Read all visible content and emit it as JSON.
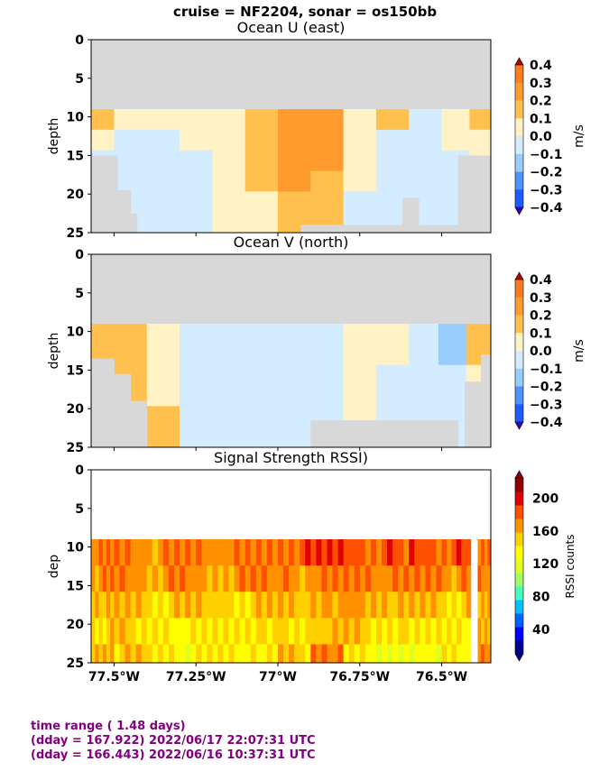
{
  "suptitle": "cruise = NF2204,  sonar = os150bb",
  "colors": {
    "land": "#d8d8d8",
    "footer": "#800080",
    "div_levels": [
      "#3300cc",
      "#1f5cff",
      "#4d94ff",
      "#99ccff",
      "#d4ecff",
      "#fff2c4",
      "#ffc04d",
      "#ff9a2e",
      "#ff7a1f",
      "#e03010",
      "#c00000"
    ],
    "rssi_levels": [
      "#00008f",
      "#0000ff",
      "#0060ff",
      "#00c0ff",
      "#40ffc0",
      "#a0ff60",
      "#e0ff20",
      "#ffff00",
      "#ffd000",
      "#ff9000",
      "#ff5000",
      "#e00000",
      "#900000"
    ]
  },
  "footer": {
    "line1": "time range ( 1.48 days)",
    "line2": "(dday = 167.922) 2022/06/17 22:07:31 UTC",
    "line3": "(dday = 166.443) 2022/06/16 10:37:31 UTC"
  },
  "chart_data": [
    {
      "type": "heatmap",
      "title": "Ocean U (east)",
      "ylabel": "depth",
      "colorbar_label": "m/s",
      "colorbar_ticks": [
        "0.4",
        "0.3",
        "0.2",
        "0.1",
        "0.0",
        "−0.1",
        "−0.2",
        "−0.3",
        "−0.4"
      ],
      "yticks": [
        "0",
        "5",
        "10",
        "15",
        "20",
        "25"
      ],
      "ylim": [
        25,
        0
      ],
      "xlim": [
        -77.57,
        -76.35
      ],
      "data_top_depth": 9,
      "land_steps": [
        [
          -77.57,
          15.0
        ],
        [
          -77.49,
          19.5
        ],
        [
          -77.45,
          22.5
        ],
        [
          -77.43,
          25.5
        ],
        [
          -76.96,
          25.5
        ],
        [
          -76.93,
          24.0
        ],
        [
          -76.62,
          20.5
        ],
        [
          -76.57,
          24.0
        ],
        [
          -76.45,
          15.0
        ],
        [
          -76.38,
          15.0
        ]
      ],
      "columns": [
        {
          "x": -77.55,
          "values": [
            0.12,
            0.05,
            -0.02,
            -0.05,
            -0.05,
            -0.05
          ]
        },
        {
          "x": -77.45,
          "values": [
            0.08,
            -0.02,
            -0.05,
            -0.05,
            -0.05,
            -0.05
          ]
        },
        {
          "x": -77.35,
          "values": [
            0.03,
            -0.02,
            -0.05,
            -0.05,
            -0.05,
            -0.05
          ]
        },
        {
          "x": -77.25,
          "values": [
            0.06,
            0.04,
            -0.03,
            -0.05,
            -0.05,
            -0.05
          ]
        },
        {
          "x": -77.15,
          "values": [
            0.08,
            0.06,
            0.04,
            0.02,
            0.02,
            0.02
          ]
        },
        {
          "x": -77.05,
          "values": [
            0.18,
            0.15,
            0.12,
            0.1,
            0.08,
            0.06
          ]
        },
        {
          "x": -76.95,
          "values": [
            0.28,
            0.25,
            0.22,
            0.2,
            0.18,
            0.15
          ]
        },
        {
          "x": -76.85,
          "values": [
            0.3,
            0.28,
            0.22,
            0.18,
            0.15,
            0.12
          ]
        },
        {
          "x": -76.75,
          "values": [
            0.08,
            0.05,
            0.02,
            0.0,
            -0.02,
            -0.03
          ]
        },
        {
          "x": -76.65,
          "values": [
            0.12,
            -0.05,
            -0.05,
            -0.05,
            -0.05,
            -0.05
          ]
        },
        {
          "x": -76.55,
          "values": [
            -0.05,
            -0.05,
            -0.05,
            -0.05,
            -0.05,
            -0.05
          ]
        },
        {
          "x": -76.45,
          "values": [
            0.05,
            0.03,
            -0.02,
            -0.05,
            -0.05,
            -0.05
          ]
        },
        {
          "x": -76.38,
          "values": [
            0.12,
            0.08,
            0.05,
            0.02,
            0.0,
            0.0
          ]
        }
      ]
    },
    {
      "type": "heatmap",
      "title": "Ocean V (north)",
      "ylabel": "depth",
      "colorbar_label": "m/s",
      "colorbar_ticks": [
        "0.4",
        "0.3",
        "0.2",
        "0.1",
        "0.0",
        "−0.1",
        "−0.2",
        "−0.3",
        "−0.4"
      ],
      "yticks": [
        "0",
        "5",
        "10",
        "15",
        "20",
        "25"
      ],
      "ylim": [
        25,
        0
      ],
      "xlim": [
        -77.57,
        -76.35
      ],
      "data_top_depth": 9,
      "land_steps": [
        [
          -77.57,
          13.5
        ],
        [
          -77.5,
          15.5
        ],
        [
          -77.45,
          19.0
        ],
        [
          -77.4,
          25.5
        ],
        [
          -76.93,
          25.5
        ],
        [
          -76.9,
          21.5
        ],
        [
          -76.45,
          25.5
        ],
        [
          -76.43,
          16.5
        ],
        [
          -76.38,
          13.0
        ]
      ],
      "columns": [
        {
          "x": -77.55,
          "values": [
            0.15,
            0.12,
            0.1,
            0.08,
            0.06,
            0.05
          ]
        },
        {
          "x": -77.45,
          "values": [
            0.12,
            0.1,
            0.1,
            0.12,
            0.12,
            0.12
          ]
        },
        {
          "x": -77.35,
          "values": [
            0.05,
            0.03,
            0.02,
            0.05,
            0.12,
            0.12
          ]
        },
        {
          "x": -77.25,
          "values": [
            -0.03,
            -0.05,
            -0.05,
            -0.05,
            -0.05,
            -0.05
          ]
        },
        {
          "x": -77.15,
          "values": [
            -0.05,
            -0.05,
            -0.05,
            -0.05,
            -0.05,
            -0.05
          ]
        },
        {
          "x": -77.05,
          "values": [
            -0.05,
            -0.05,
            -0.05,
            -0.05,
            -0.05,
            -0.05
          ]
        },
        {
          "x": -76.95,
          "values": [
            -0.05,
            -0.05,
            -0.05,
            -0.05,
            -0.05,
            -0.05
          ]
        },
        {
          "x": -76.85,
          "values": [
            -0.05,
            -0.05,
            -0.05,
            -0.05,
            -0.05,
            -0.05
          ]
        },
        {
          "x": -76.75,
          "values": [
            0.03,
            0.03,
            0.02,
            0.02,
            0.03,
            0.03
          ]
        },
        {
          "x": -76.65,
          "values": [
            0.05,
            0.03,
            -0.05,
            -0.05,
            -0.05,
            -0.05
          ]
        },
        {
          "x": -76.55,
          "values": [
            -0.05,
            -0.05,
            -0.05,
            -0.05,
            -0.05,
            -0.05
          ]
        },
        {
          "x": -76.47,
          "values": [
            -0.15,
            -0.12,
            -0.05,
            -0.03,
            -0.03,
            -0.03
          ]
        },
        {
          "x": -76.38,
          "values": [
            0.12,
            0.12,
            0.08,
            0.05,
            0.05,
            0.05
          ]
        }
      ]
    },
    {
      "type": "heatmap",
      "title": "Signal Strength RSSI)",
      "ylabel": "dep",
      "colorbar_label": "RSSI counts",
      "colorbar_ticks": [
        "200",
        "160",
        "120",
        "80",
        "40"
      ],
      "yticks": [
        "0",
        "5",
        "10",
        "15",
        "20",
        "25"
      ],
      "xticks": [
        "77.5°W",
        "77.25°W",
        "77°W",
        "76.75°W",
        "76.5°W"
      ],
      "ylim": [
        25,
        0
      ],
      "xlim": [
        -77.57,
        -76.35
      ],
      "clim": [
        10,
        225
      ],
      "depth_bins": [
        9,
        12.4,
        15.8,
        19.2,
        22.6
      ],
      "gaps": [
        [
          -76.41,
          -76.39
        ]
      ],
      "columns": [
        {
          "x": -77.55,
          "values": [
            175,
            170,
            158,
            150,
            160
          ]
        },
        {
          "x": -77.45,
          "values": [
            172,
            168,
            155,
            148,
            150
          ]
        },
        {
          "x": -77.35,
          "values": [
            170,
            166,
            150,
            140,
            140
          ]
        },
        {
          "x": -77.25,
          "values": [
            170,
            165,
            150,
            138,
            135
          ]
        },
        {
          "x": -77.15,
          "values": [
            172,
            165,
            152,
            140,
            138
          ]
        },
        {
          "x": -77.05,
          "values": [
            175,
            168,
            152,
            145,
            140
          ]
        },
        {
          "x": -76.95,
          "values": [
            180,
            170,
            155,
            148,
            150
          ]
        },
        {
          "x": -76.85,
          "values": [
            190,
            175,
            160,
            155,
            175
          ]
        },
        {
          "x": -76.75,
          "values": [
            185,
            175,
            165,
            150,
            135
          ]
        },
        {
          "x": -76.65,
          "values": [
            180,
            172,
            158,
            145,
            130
          ]
        },
        {
          "x": -76.55,
          "values": [
            185,
            175,
            155,
            140,
            130
          ]
        },
        {
          "x": -76.45,
          "values": [
            180,
            170,
            150,
            140,
            138
          ]
        },
        {
          "x": -76.37,
          "values": [
            175,
            168,
            160,
            160,
            165
          ]
        }
      ]
    }
  ]
}
